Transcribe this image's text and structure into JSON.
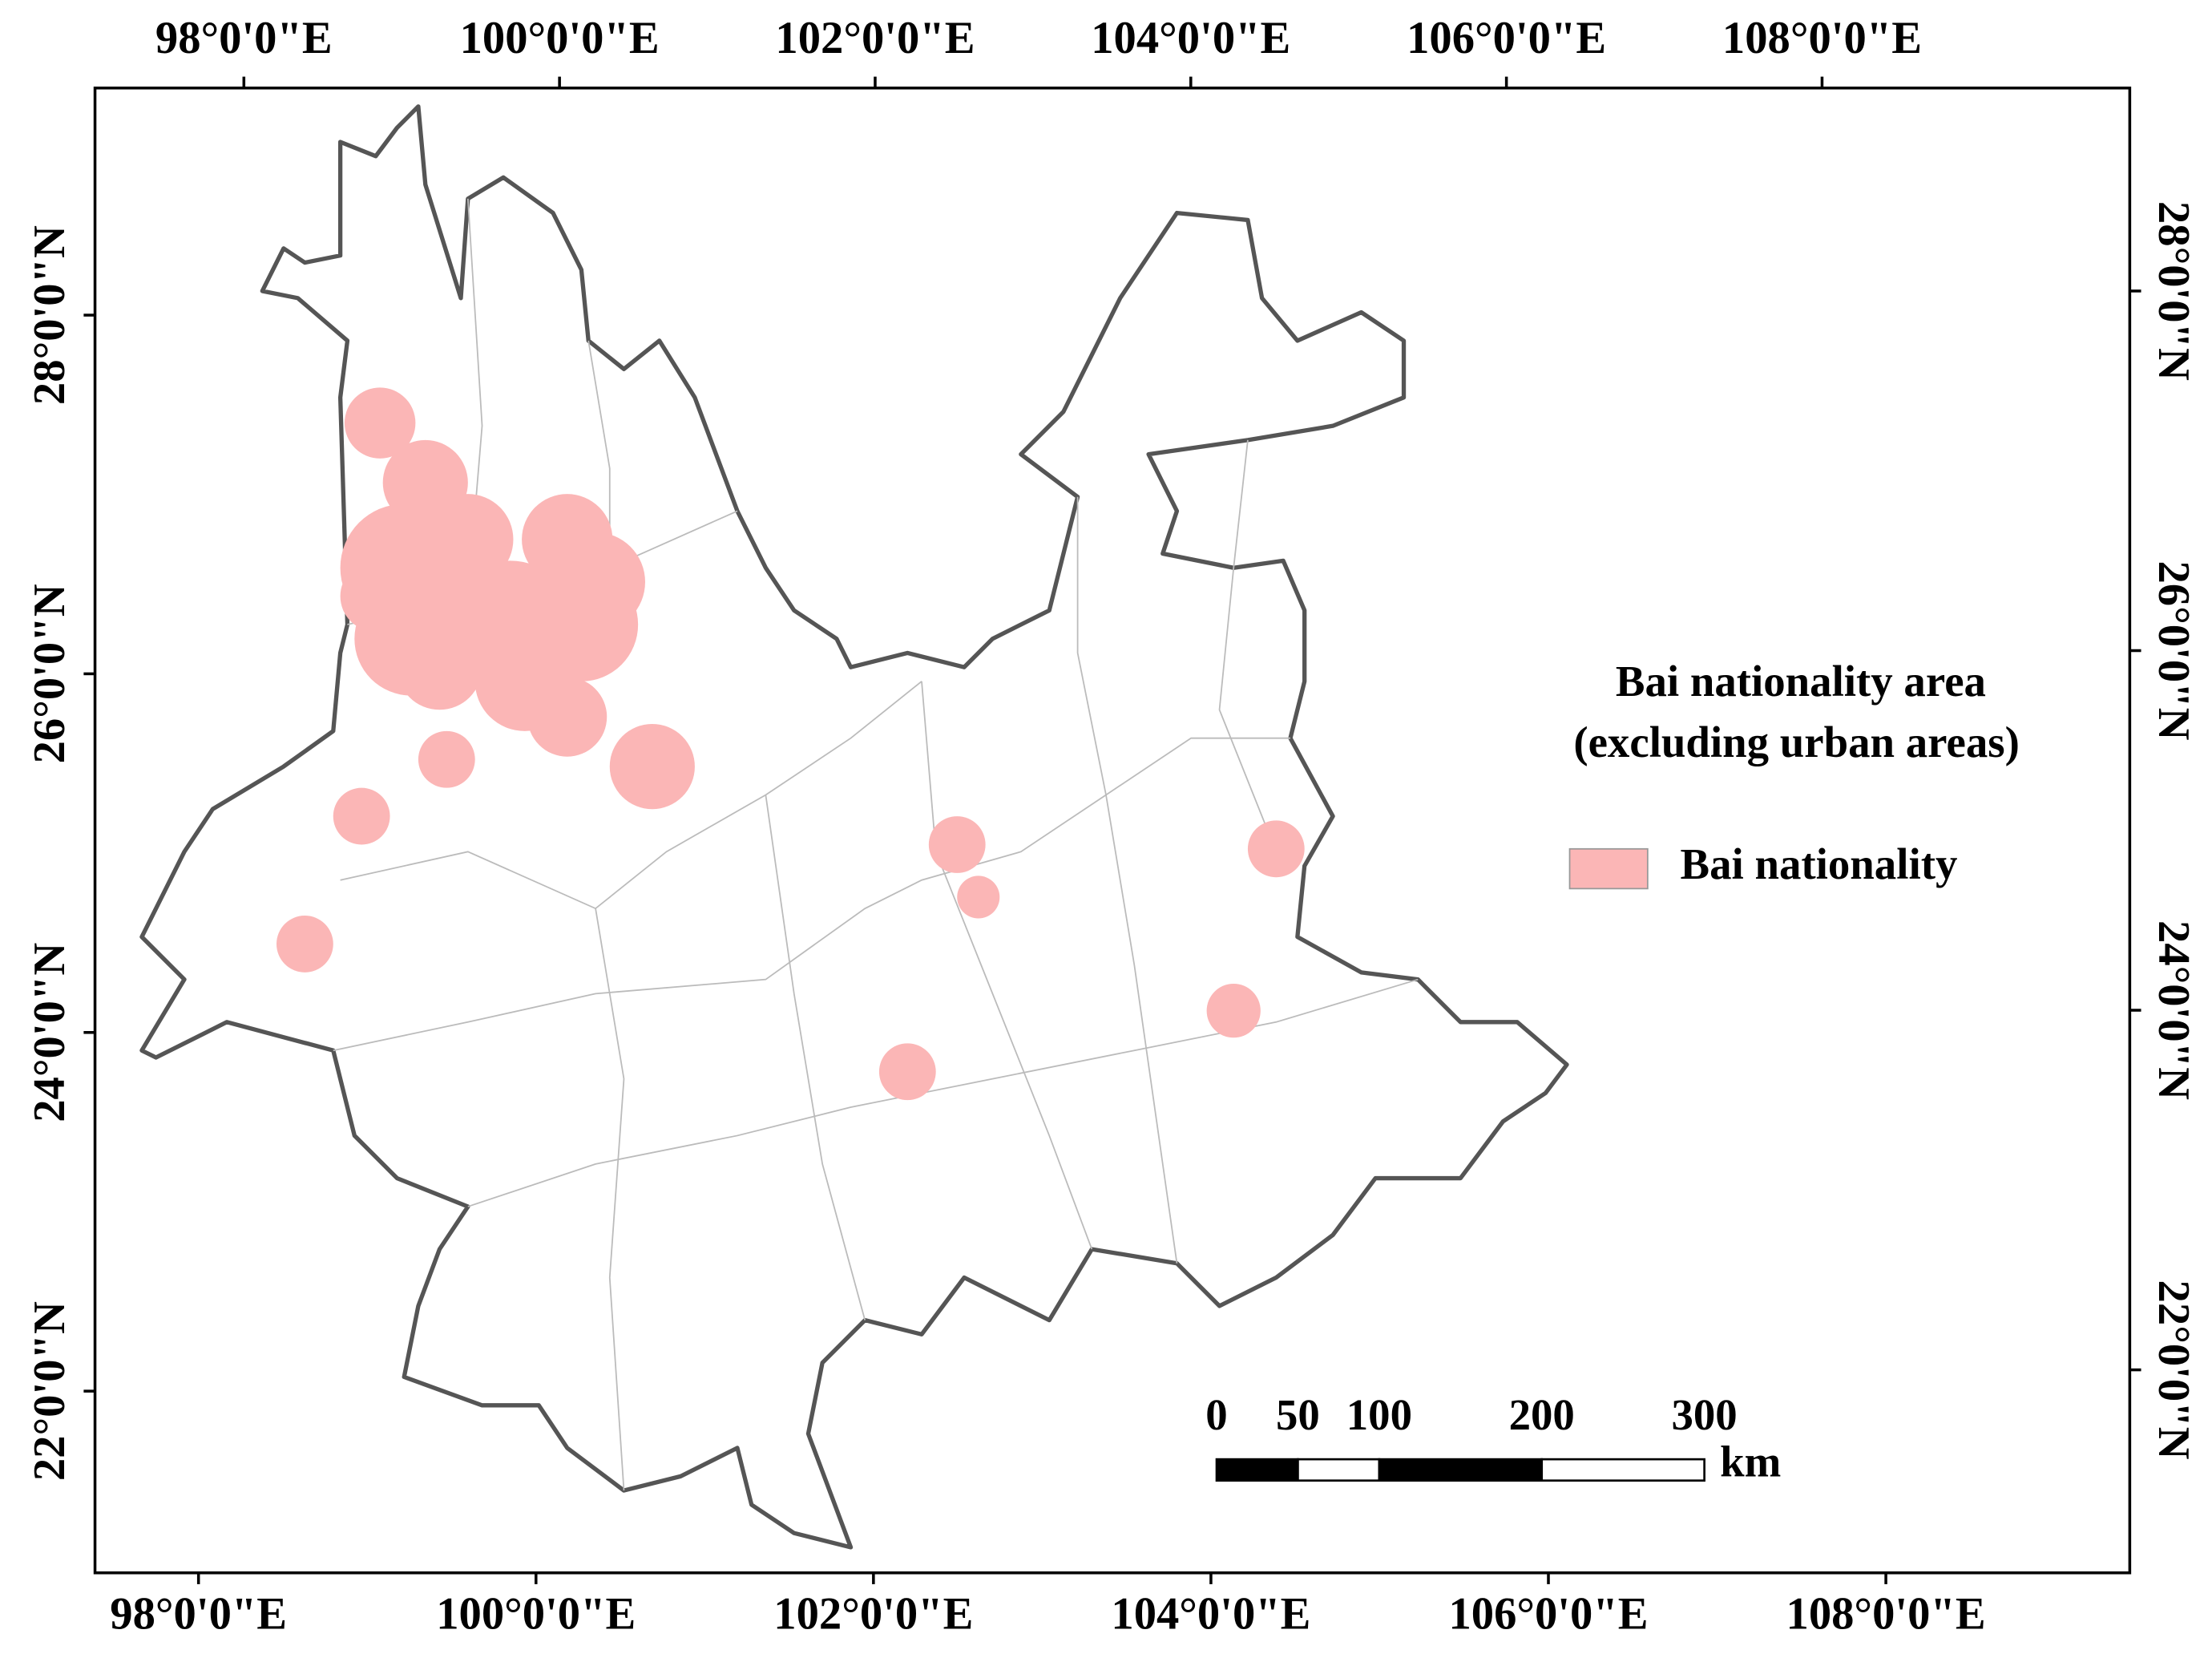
{
  "graticule": {
    "top": [
      {
        "value": 98,
        "label": "98°0'0\"E"
      },
      {
        "value": 100,
        "label": "100°0'0\"E"
      },
      {
        "value": 102,
        "label": "102°0'0\"E"
      },
      {
        "value": 104,
        "label": "104°0'0\"E"
      },
      {
        "value": 106,
        "label": "106°0'0\"E"
      },
      {
        "value": 108,
        "label": "108°0'0\"E"
      }
    ],
    "bottom": [
      {
        "value": 98,
        "label": "98°0'0\"E"
      },
      {
        "value": 100,
        "label": "100°0'0\"E"
      },
      {
        "value": 102,
        "label": "102°0'0\"E"
      },
      {
        "value": 104,
        "label": "104°0'0\"E"
      },
      {
        "value": 106,
        "label": "106°0'0\"E"
      },
      {
        "value": 108,
        "label": "108°0'0\"E"
      }
    ],
    "left": [
      {
        "value": 28,
        "label": "28°0'0\"N"
      },
      {
        "value": 26,
        "label": "26°0'0\"N"
      },
      {
        "value": 24,
        "label": "24°0'0\"N"
      },
      {
        "value": 22,
        "label": "22°0'0\"N"
      }
    ],
    "right": [
      {
        "value": 28,
        "label": "28°0'0\"N"
      },
      {
        "value": 26,
        "label": "26°0'0\"N"
      },
      {
        "value": 24,
        "label": "24°0'0\"N"
      },
      {
        "value": 22,
        "label": "22°0'0\"N"
      }
    ]
  },
  "legend": {
    "title": [
      "Bai nationality area",
      "(excluding urban areas)"
    ],
    "items": [
      {
        "label": "Bai nationality",
        "color": "#fbb6b6"
      }
    ]
  },
  "scale_bar": {
    "ticks": [
      0,
      50,
      100,
      200,
      300
    ],
    "unit": "km"
  }
}
